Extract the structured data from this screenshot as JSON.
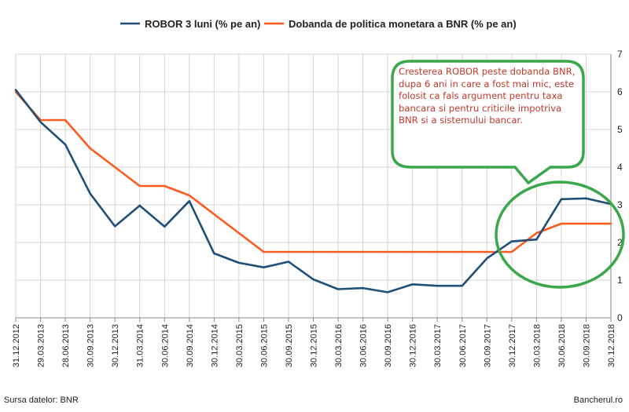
{
  "chart_data": {
    "type": "line",
    "title": "",
    "xlabel": "",
    "ylabel": "",
    "ylim": [
      0,
      7
    ],
    "yticks": [
      0,
      1,
      2,
      3,
      4,
      5,
      6,
      7
    ],
    "grid": true,
    "legend_position": "top",
    "x": [
      "31.12.2012",
      "29.03.2013",
      "28.06.2013",
      "30.09.2013",
      "30.12.2013",
      "31.03.2014",
      "30.06.2014",
      "30.09.2014",
      "30.12.2014",
      "30.03.2015",
      "30.06.2015",
      "30.09.2015",
      "30.12.2015",
      "30.03.2016",
      "30.06.2016",
      "30.09.2016",
      "30.12.2016",
      "30.03.2017",
      "30.06.2017",
      "30.09.2017",
      "30.12.2017",
      "30.03.2018",
      "30.06.2018",
      "30.09.2018",
      "30.12.2018"
    ],
    "series": [
      {
        "name": "ROBOR 3 luni (% pe an)",
        "color": "#1f4e79",
        "values": [
          6.05,
          5.2,
          4.6,
          3.3,
          2.43,
          2.98,
          2.42,
          3.1,
          1.71,
          1.46,
          1.34,
          1.49,
          1.02,
          0.76,
          0.79,
          0.68,
          0.89,
          0.85,
          0.85,
          1.58,
          2.03,
          2.08,
          3.15,
          3.17,
          3.02
        ]
      },
      {
        "name": "Dobanda de politica monetara a BNR (% pe an)",
        "color": "#ff5a1f",
        "values": [
          6.0,
          5.25,
          5.25,
          4.5,
          4.0,
          3.5,
          3.5,
          3.25,
          2.75,
          2.25,
          1.75,
          1.75,
          1.75,
          1.75,
          1.75,
          1.75,
          1.75,
          1.75,
          1.75,
          1.75,
          1.75,
          2.25,
          2.5,
          2.5,
          2.5
        ]
      }
    ],
    "annotation": "Cresterea ROBOR peste dobanda BNR, dupa 6 ani in care a fost mai mic, este folosit ca fals argument pentru taxa bancara si pentru criticile impotriva BNR si a sistemului bancar.",
    "annotation_color": "#c0392b",
    "callout_color": "#3aa84a"
  },
  "footer": {
    "source": "Sursa datelor: BNR",
    "brand": "Bancherul.ro"
  }
}
